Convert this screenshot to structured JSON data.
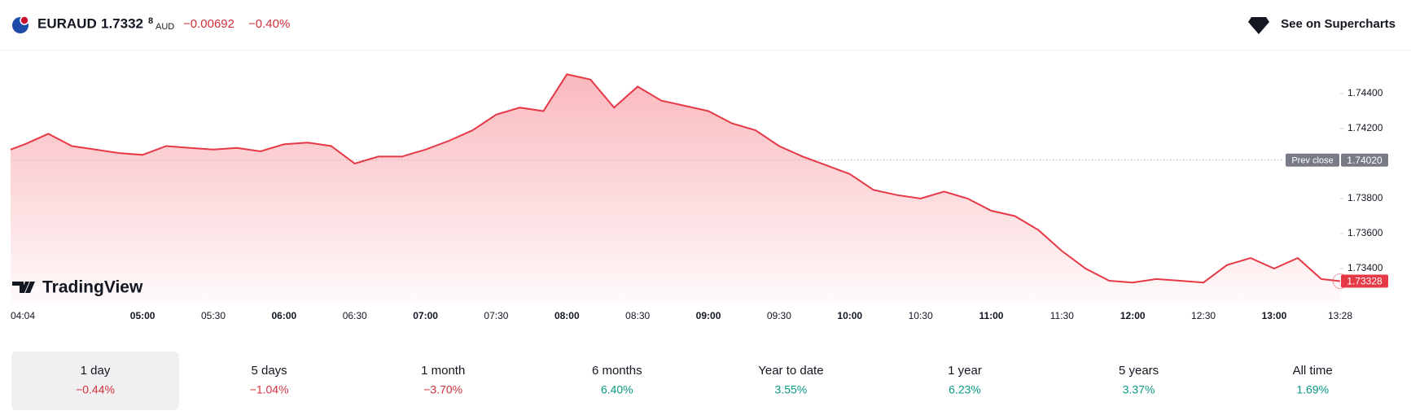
{
  "header": {
    "symbol": "EURAUD",
    "price": "1.7332",
    "price_fraction": "8",
    "currency": "AUD",
    "change": "−0.00692",
    "change_percent": "−0.40%",
    "link": "See on Supercharts"
  },
  "watermark": "TradingView",
  "chart_data": {
    "type": "area",
    "x": [
      "04:04",
      "04:10",
      "04:20",
      "04:30",
      "04:40",
      "04:50",
      "05:00",
      "05:10",
      "05:20",
      "05:30",
      "05:40",
      "05:50",
      "06:00",
      "06:10",
      "06:20",
      "06:30",
      "06:40",
      "06:50",
      "07:00",
      "07:10",
      "07:20",
      "07:30",
      "07:40",
      "07:50",
      "08:00",
      "08:10",
      "08:20",
      "08:30",
      "08:40",
      "08:50",
      "09:00",
      "09:10",
      "09:20",
      "09:30",
      "09:40",
      "09:50",
      "10:00",
      "10:10",
      "10:20",
      "10:30",
      "10:40",
      "10:50",
      "11:00",
      "11:10",
      "11:20",
      "11:30",
      "11:40",
      "11:50",
      "12:00",
      "12:10",
      "12:20",
      "12:30",
      "12:40",
      "12:50",
      "13:00",
      "13:10",
      "13:20",
      "13:28"
    ],
    "series": [
      {
        "color": "#e63946",
        "values": [
          1.7408,
          1.7411,
          1.7417,
          1.741,
          1.7408,
          1.7406,
          1.7405,
          1.741,
          1.7409,
          1.7408,
          1.7409,
          1.7407,
          1.7411,
          1.7412,
          1.741,
          1.74,
          1.7404,
          1.7404,
          1.7408,
          1.7413,
          1.7419,
          1.7428,
          1.7432,
          1.743,
          1.7451,
          1.7448,
          1.7432,
          1.7444,
          1.7436,
          1.7433,
          1.743,
          1.7423,
          1.7419,
          1.741,
          1.7404,
          1.7399,
          1.7394,
          1.7385,
          1.7382,
          1.738,
          1.7384,
          1.738,
          1.7373,
          1.737,
          1.7362,
          1.735,
          1.734,
          1.7333,
          1.7332,
          1.7334,
          1.7333,
          1.7332,
          1.7342,
          1.7346,
          1.734,
          1.7346,
          1.7334,
          1.73328
        ]
      }
    ],
    "xlim": [
      "04:04",
      "13:28"
    ],
    "xticks": [
      "04:04",
      "05:00",
      "05:30",
      "06:00",
      "06:30",
      "07:00",
      "07:30",
      "08:00",
      "08:30",
      "09:00",
      "09:30",
      "10:00",
      "10:30",
      "11:00",
      "11:30",
      "12:00",
      "12:30",
      "13:00",
      "13:28"
    ],
    "ylim": [
      1.732,
      1.746
    ],
    "yticks": [
      {
        "value": 1.734,
        "label": "1.73400"
      },
      {
        "value": 1.736,
        "label": "1.73600"
      },
      {
        "value": 1.738,
        "label": "1.73800"
      },
      {
        "value": 1.742,
        "label": "1.74200"
      },
      {
        "value": 1.744,
        "label": "1.74400"
      }
    ],
    "prev_close_label": "Prev close",
    "prev_close": {
      "value": 1.7402,
      "label": "1.74020"
    }
  },
  "periods": [
    {
      "name": "1 day",
      "change": "−0.44%",
      "color": "#d0313d"
    },
    {
      "name": "5 days",
      "change": "−1.04%",
      "color": "#d0313d"
    },
    {
      "name": "1 month",
      "change": "−3.70%",
      "color": "#d0313d"
    },
    {
      "name": "6 months",
      "change": "6.40%",
      "color": "#089981"
    },
    {
      "name": "Year to date",
      "change": "3.55%",
      "color": "#089981"
    },
    {
      "name": "1 year",
      "change": "6.23%",
      "color": "#089981"
    },
    {
      "name": "5 years",
      "change": "3.37%",
      "color": "#089981"
    },
    {
      "name": "All time",
      "change": "1.69%",
      "color": "#089981"
    }
  ]
}
